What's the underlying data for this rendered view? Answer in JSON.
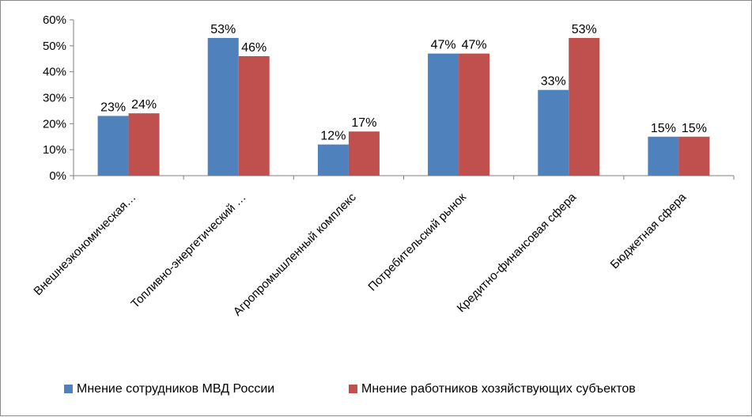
{
  "chart_data": {
    "type": "bar",
    "y_tick_labels": [
      "0%",
      "10%",
      "20%",
      "30%",
      "40%",
      "50%",
      "60%"
    ],
    "ylim": [
      0,
      0.6
    ],
    "categories": [
      "Внешнеэкономическая…",
      "Топливно-энергетический …",
      "Агропромышленный комплекс",
      "Потребительский рынок",
      "Кредитно-финансовая сфера",
      "Бюджетная сфера"
    ],
    "series": [
      {
        "name": "Мнение сотрудников МВД России",
        "color": "#4f81bd",
        "values": [
          0.23,
          0.53,
          0.12,
          0.47,
          0.33,
          0.15
        ],
        "labels": [
          "23%",
          "53%",
          "12%",
          "47%",
          "33%",
          "15%"
        ]
      },
      {
        "name": "Мнение работников хозяйствующих субъектов",
        "color": "#c0504d",
        "values": [
          0.24,
          0.46,
          0.17,
          0.47,
          0.53,
          0.15
        ],
        "labels": [
          "24%",
          "46%",
          "17%",
          "47%",
          "53%",
          "15%"
        ]
      }
    ],
    "grid": false,
    "legend_position": "bottom"
  }
}
